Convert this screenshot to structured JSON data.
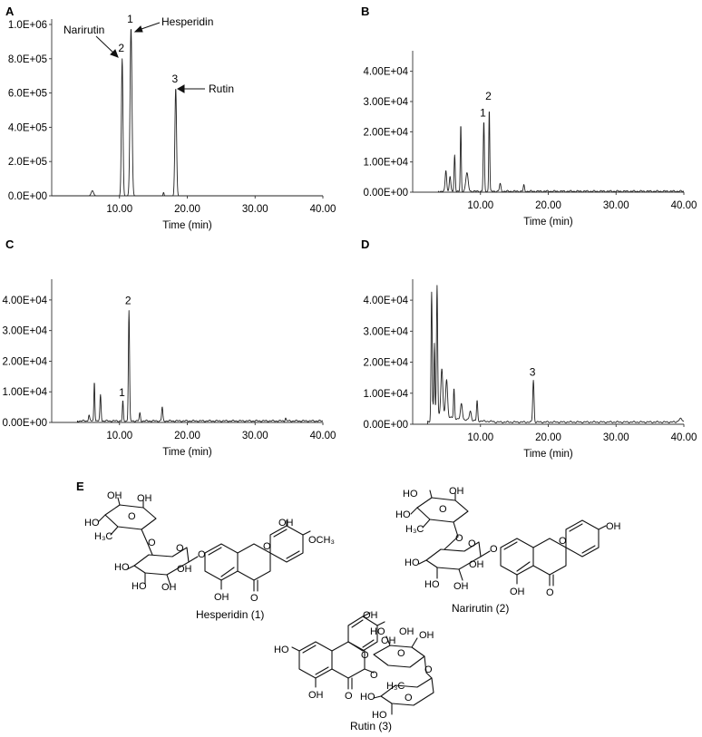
{
  "figure": {
    "panels": [
      "A",
      "B",
      "C",
      "D",
      "E"
    ]
  },
  "chart_data": [
    {
      "panel": "A",
      "type": "line",
      "xlabel": "Time (min)",
      "xticks": [
        10,
        20,
        30,
        40
      ],
      "xtick_labels": [
        "10.00",
        "20.00",
        "30.00",
        "40.00"
      ],
      "xlim": [
        0,
        40
      ],
      "ylim": [
        0,
        1000000
      ],
      "yticks": [
        0,
        200000,
        400000,
        600000,
        800000,
        1000000
      ],
      "ytick_labels": [
        "0.0E+00",
        "2.0E+05",
        "4.0E+05",
        "6.0E+05",
        "8.0E+05",
        "1.0E+06"
      ],
      "baseline": 0,
      "peaks": [
        {
          "rt": 6.0,
          "height": 30000,
          "width": 0.25
        },
        {
          "rt": 10.4,
          "height": 800000,
          "width": 0.16
        },
        {
          "rt": 11.7,
          "height": 980000,
          "width": 0.2
        },
        {
          "rt": 16.5,
          "height": 20000,
          "width": 0.1
        },
        {
          "rt": 18.3,
          "height": 630000,
          "width": 0.17
        }
      ],
      "peak_labels": [
        {
          "text": "1",
          "rt": 11.7,
          "y": 1000000
        },
        {
          "text": "2",
          "rt": 10.4,
          "y": 830000
        },
        {
          "text": "3",
          "rt": 18.3,
          "y": 650000
        }
      ],
      "annotations": [
        "Narirutin",
        "Hesperidin",
        "Rutin"
      ]
    },
    {
      "panel": "B",
      "type": "line",
      "xlabel": "Time (min)",
      "xticks": [
        10,
        20,
        30,
        40
      ],
      "xtick_labels": [
        "10.00",
        "20.00",
        "30.00",
        "40.00"
      ],
      "xlim": [
        0,
        40
      ],
      "ylim": [
        0,
        45000
      ],
      "yticks": [
        0,
        10000,
        20000,
        30000,
        40000
      ],
      "ytick_labels": [
        "0.00E+00",
        "1.00E+04",
        "2.00E+04",
        "3.00E+04",
        "4.00E+04"
      ],
      "baseline": 300,
      "peaks": [
        {
          "rt": 4.9,
          "height": 7000,
          "width": 0.15
        },
        {
          "rt": 5.5,
          "height": 5000,
          "width": 0.15
        },
        {
          "rt": 6.2,
          "height": 12000,
          "width": 0.12
        },
        {
          "rt": 7.1,
          "height": 22000,
          "width": 0.1
        },
        {
          "rt": 8.0,
          "height": 6000,
          "width": 0.25
        },
        {
          "rt": 10.5,
          "height": 23000,
          "width": 0.12
        },
        {
          "rt": 11.3,
          "height": 27500,
          "width": 0.1
        },
        {
          "rt": 12.9,
          "height": 2500,
          "width": 0.15
        },
        {
          "rt": 16.4,
          "height": 2000,
          "width": 0.12
        }
      ],
      "peak_labels": [
        {
          "text": "1",
          "rt": 10.5,
          "y": 24500
        },
        {
          "text": "2",
          "rt": 11.3,
          "y": 30000
        }
      ],
      "annotations": []
    },
    {
      "panel": "C",
      "type": "line",
      "xlabel": "Time (min)",
      "xticks": [
        10,
        20,
        30,
        40
      ],
      "xtick_labels": [
        "10.00",
        "20.00",
        "30.00",
        "40.00"
      ],
      "xlim": [
        0,
        40
      ],
      "ylim": [
        0,
        45000
      ],
      "yticks": [
        0,
        10000,
        20000,
        30000,
        40000
      ],
      "ytick_labels": [
        "0.00E+00",
        "1.00E+04",
        "2.00E+04",
        "3.00E+04",
        "4.00E+04"
      ],
      "baseline": 500,
      "peaks": [
        {
          "rt": 5.5,
          "height": 2000,
          "width": 0.12
        },
        {
          "rt": 6.3,
          "height": 13000,
          "width": 0.1
        },
        {
          "rt": 7.2,
          "height": 8500,
          "width": 0.12
        },
        {
          "rt": 10.5,
          "height": 6500,
          "width": 0.1
        },
        {
          "rt": 11.4,
          "height": 36000,
          "width": 0.12
        },
        {
          "rt": 13.0,
          "height": 2500,
          "width": 0.12
        },
        {
          "rt": 16.3,
          "height": 4500,
          "width": 0.12
        },
        {
          "rt": 34.5,
          "height": 1000,
          "width": 0.1
        }
      ],
      "peak_labels": [
        {
          "text": "1",
          "rt": 10.5,
          "y": 8000
        },
        {
          "text": "2",
          "rt": 11.4,
          "y": 38000
        }
      ],
      "annotations": []
    },
    {
      "panel": "D",
      "type": "line",
      "xlabel": "Time (min)",
      "xticks": [
        10,
        20,
        30,
        40
      ],
      "xtick_labels": [
        "10.00",
        "20.00",
        "30.00",
        "40.00"
      ],
      "xlim": [
        0,
        40
      ],
      "ylim": [
        0,
        45000
      ],
      "yticks": [
        0,
        10000,
        20000,
        30000,
        40000
      ],
      "ytick_labels": [
        "0.00E+00",
        "1.00E+04",
        "2.00E+04",
        "3.00E+04",
        "4.00E+04"
      ],
      "baseline": 700,
      "peaks": [
        {
          "rt": 2.8,
          "height": 42000,
          "width": 0.12
        },
        {
          "rt": 3.2,
          "height": 22000,
          "width": 0.1
        },
        {
          "rt": 3.6,
          "height": 41000,
          "width": 0.12
        },
        {
          "rt": 4.3,
          "height": 15000,
          "width": 0.2
        },
        {
          "rt": 5.0,
          "height": 12000,
          "width": 0.2
        },
        {
          "rt": 6.1,
          "height": 9500,
          "width": 0.12
        },
        {
          "rt": 7.2,
          "height": 5000,
          "width": 0.2
        },
        {
          "rt": 8.5,
          "height": 3000,
          "width": 0.2
        },
        {
          "rt": 9.5,
          "height": 6500,
          "width": 0.12
        },
        {
          "rt": 17.8,
          "height": 13500,
          "width": 0.14
        },
        {
          "rt": 39.5,
          "height": 1000,
          "width": 0.4
        }
      ],
      "peak_labels": [
        {
          "text": "3",
          "rt": 17.8,
          "y": 15000
        }
      ],
      "annotations": []
    }
  ],
  "structures": {
    "hesperidin": {
      "caption": "Hesperidin (1)",
      "atoms": {
        "oh1": "OH",
        "hooh": "HO",
        "ch3": "H₃C",
        "o1": "O",
        "o2": "O",
        "o3": "O",
        "o4": "O",
        "ho2": "HO",
        "oh2": "OH",
        "oh3": "OH",
        "ho3": "HO",
        "oh5": "OH",
        "o5": "O",
        "ring_o": "O",
        "aryl_oh": "OH",
        "och3": "OCH₃",
        "oh_bottom": "OH"
      }
    },
    "narirutin": {
      "caption": "Narirutin (2)",
      "atoms": {
        "oh1": "OH",
        "hooh": "HO",
        "ch3": "H₃C",
        "o1": "O",
        "o2": "O",
        "o3": "O",
        "o4": "O",
        "ho2": "HO",
        "oh2": "OH",
        "oh3": "OH",
        "ho3": "HO",
        "oh5": "OH",
        "o5": "O",
        "ring_o": "O",
        "aryl_oh": "OH",
        "oh_bottom": "OH"
      }
    },
    "rutin": {
      "caption": "Rutin (3)",
      "atoms": {
        "ho_left": "HO",
        "oh_top1": "OH",
        "oh_top2": "OH",
        "o_ring": "O",
        "o_link": "O",
        "ho_sug1": "HO",
        "oh_sug1": "OH",
        "oh_sug2": "OH",
        "o_sug": "O",
        "o_sug2": "O",
        "ch3": "H₃C",
        "ho_sug2": "HO",
        "ho_sug3": "HO",
        "oh_bottom": "OH",
        "o_keto": "O",
        "o_rha": "O"
      }
    }
  }
}
